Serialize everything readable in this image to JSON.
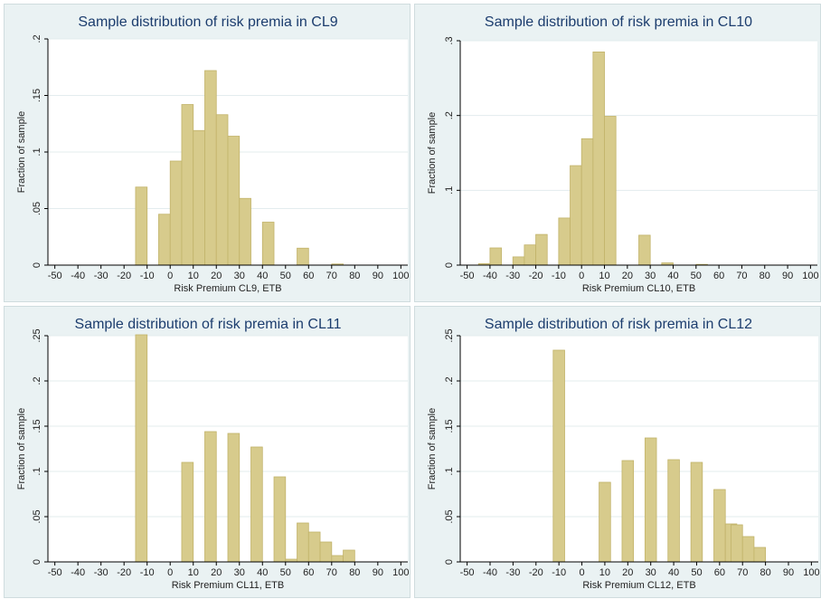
{
  "colors": {
    "panel_bg": "#eaf2f3",
    "plot_bg": "#ffffff",
    "bar_fill": "#d7cb8c",
    "bar_stroke": "#c2b36a",
    "grid": "#e3ecee",
    "title": "#1c3d6e"
  },
  "chart_data": [
    {
      "type": "bar",
      "title": "Sample distribution of risk premia in CL9",
      "xlabel": "Risk Premium CL9, ETB",
      "ylabel": "Fraction of sample",
      "xlim": [
        -53,
        103
      ],
      "ylim": [
        0,
        0.2
      ],
      "xticks": [
        -50,
        -40,
        -30,
        -20,
        -10,
        0,
        10,
        20,
        30,
        40,
        50,
        60,
        70,
        80,
        90,
        100
      ],
      "xtick_labels": [
        "-50",
        "-40",
        "-30",
        "-20",
        "-10",
        "0",
        "10",
        "20",
        "30",
        "40",
        "50",
        "60",
        "70",
        "80",
        "90",
        "100"
      ],
      "yticks": [
        0,
        0.05,
        0.1,
        0.15,
        0.2
      ],
      "ytick_labels": [
        "0",
        ".05",
        ".1",
        ".15",
        ".2"
      ],
      "grid": true,
      "bin_width": 5,
      "bins": [
        {
          "x": -12.5,
          "value": 0.069
        },
        {
          "x": -2.5,
          "value": 0.045
        },
        {
          "x": 2.5,
          "value": 0.092
        },
        {
          "x": 7.5,
          "value": 0.142
        },
        {
          "x": 12.5,
          "value": 0.119
        },
        {
          "x": 17.5,
          "value": 0.172
        },
        {
          "x": 22.5,
          "value": 0.133
        },
        {
          "x": 27.5,
          "value": 0.114
        },
        {
          "x": 32.5,
          "value": 0.059
        },
        {
          "x": 42.5,
          "value": 0.038
        },
        {
          "x": 57.5,
          "value": 0.015
        },
        {
          "x": 72.5,
          "value": 0.001
        }
      ]
    },
    {
      "type": "bar",
      "title": "Sample distribution of risk premia in CL10",
      "xlabel": "Risk Premium CL10, ETB",
      "ylabel": "Fraction of sample",
      "xlim": [
        -53,
        103
      ],
      "ylim": [
        0,
        0.3
      ],
      "xticks": [
        -50,
        -40,
        -30,
        -20,
        -10,
        0,
        10,
        20,
        30,
        40,
        50,
        60,
        70,
        80,
        90,
        100
      ],
      "xtick_labels": [
        "-50",
        "-40",
        "-30",
        "-20",
        "-10",
        "0",
        "10",
        "20",
        "30",
        "40",
        "50",
        "60",
        "70",
        "80",
        "90",
        "100"
      ],
      "yticks": [
        0,
        0.1,
        0.2,
        0.3
      ],
      "ytick_labels": [
        "0",
        ".1",
        ".2",
        ".3"
      ],
      "grid": true,
      "bin_width": 5,
      "bins": [
        {
          "x": -42.5,
          "value": 0.002
        },
        {
          "x": -37.5,
          "value": 0.023
        },
        {
          "x": -27.5,
          "value": 0.011
        },
        {
          "x": -22.5,
          "value": 0.027
        },
        {
          "x": -17.5,
          "value": 0.041
        },
        {
          "x": -7.5,
          "value": 0.063
        },
        {
          "x": -2.5,
          "value": 0.133
        },
        {
          "x": 2.5,
          "value": 0.169
        },
        {
          "x": 7.5,
          "value": 0.285
        },
        {
          "x": 12.5,
          "value": 0.199
        },
        {
          "x": 27.5,
          "value": 0.04
        },
        {
          "x": 37.5,
          "value": 0.003
        },
        {
          "x": 52.5,
          "value": 0.001
        }
      ]
    },
    {
      "type": "bar",
      "title": "Sample distribution of risk premia in CL11",
      "xlabel": "Risk Premium CL11, ETB",
      "ylabel": "Fraction of sample",
      "xlim": [
        -53,
        103
      ],
      "ylim": [
        0,
        0.25
      ],
      "xticks": [
        -50,
        -40,
        -30,
        -20,
        -10,
        0,
        10,
        20,
        30,
        40,
        50,
        60,
        70,
        80,
        90,
        100
      ],
      "xtick_labels": [
        "-50",
        "-40",
        "-30",
        "-20",
        "-10",
        "0",
        "10",
        "20",
        "30",
        "40",
        "50",
        "60",
        "70",
        "80",
        "90",
        "100"
      ],
      "yticks": [
        0,
        0.05,
        0.1,
        0.15,
        0.2,
        0.25
      ],
      "ytick_labels": [
        "0",
        ".05",
        ".1",
        ".15",
        ".2",
        ".25"
      ],
      "grid": true,
      "bin_width": 5,
      "bins": [
        {
          "x": -12.5,
          "value": 0.251
        },
        {
          "x": 7.5,
          "value": 0.11
        },
        {
          "x": 17.5,
          "value": 0.144
        },
        {
          "x": 27.5,
          "value": 0.142
        },
        {
          "x": 37.5,
          "value": 0.127
        },
        {
          "x": 47.5,
          "value": 0.094
        },
        {
          "x": 52.5,
          "value": 0.003
        },
        {
          "x": 57.5,
          "value": 0.043
        },
        {
          "x": 62.5,
          "value": 0.033
        },
        {
          "x": 67.5,
          "value": 0.022
        },
        {
          "x": 72.5,
          "value": 0.007
        },
        {
          "x": 77.5,
          "value": 0.013
        }
      ]
    },
    {
      "type": "bar",
      "title": "Sample distribution of risk premia in CL12",
      "xlabel": "Risk Premium CL12, ETB",
      "ylabel": "Fraction of sample",
      "xlim": [
        -53,
        103
      ],
      "ylim": [
        0,
        0.25
      ],
      "xticks": [
        -50,
        -40,
        -30,
        -20,
        -10,
        0,
        10,
        20,
        30,
        40,
        50,
        60,
        70,
        80,
        90,
        100
      ],
      "xtick_labels": [
        "-50",
        "-40",
        "-30",
        "-20",
        "-10",
        "0",
        "10",
        "20",
        "30",
        "40",
        "50",
        "60",
        "70",
        "80",
        "90",
        "100"
      ],
      "yticks": [
        0,
        0.05,
        0.1,
        0.15,
        0.2,
        0.25
      ],
      "ytick_labels": [
        "0",
        ".05",
        ".1",
        ".15",
        ".2",
        ".25"
      ],
      "grid": true,
      "bin_width": 5,
      "bins": [
        {
          "x": -10,
          "value": 0.234
        },
        {
          "x": 10,
          "value": 0.088
        },
        {
          "x": 20,
          "value": 0.112
        },
        {
          "x": 30,
          "value": 0.137
        },
        {
          "x": 40,
          "value": 0.113
        },
        {
          "x": 50,
          "value": 0.11
        },
        {
          "x": 60,
          "value": 0.08
        },
        {
          "x": 65,
          "value": 0.042
        },
        {
          "x": 67.5,
          "value": 0.041
        },
        {
          "x": 72.5,
          "value": 0.028
        },
        {
          "x": 77.5,
          "value": 0.016
        }
      ]
    }
  ]
}
